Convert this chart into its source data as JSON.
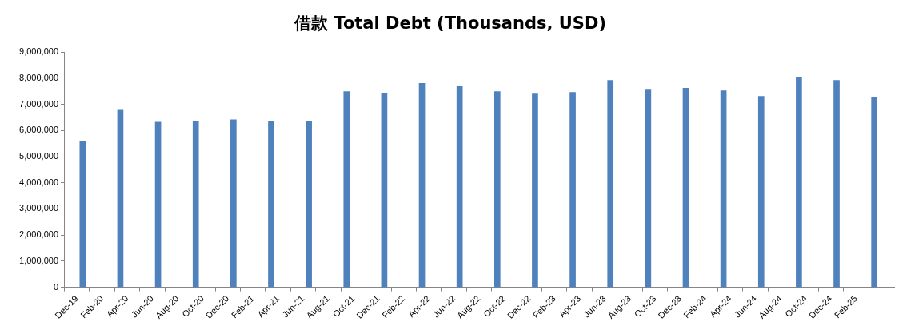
{
  "chart_data": {
    "type": "bar",
    "title": "借款 Total Debt (Thousands, USD)",
    "x": [
      "2019-12-15",
      "2020-03-15",
      "2020-06-15",
      "2020-09-15",
      "2020-12-15",
      "2021-03-15",
      "2021-06-15",
      "2021-09-15",
      "2021-12-15",
      "2022-03-15",
      "2022-06-15",
      "2022-09-15",
      "2022-12-15",
      "2023-03-15",
      "2023-06-15",
      "2023-09-15",
      "2023-12-15",
      "2024-03-15",
      "2024-06-15",
      "2024-09-15",
      "2024-12-15",
      "2025-03-15"
    ],
    "values": [
      5580000,
      6780000,
      6320000,
      6350000,
      6410000,
      6350000,
      6350000,
      7490000,
      7430000,
      7800000,
      7680000,
      7490000,
      7400000,
      7460000,
      7920000,
      7550000,
      7620000,
      7520000,
      7310000,
      8050000,
      7920000,
      7280000
    ],
    "color": "#4f81bd",
    "xlim": [
      "2019-12",
      "2025-04"
    ],
    "xticks": [
      {
        "value": "2019-12",
        "label": "Dec-19"
      },
      {
        "value": "2020-02",
        "label": "Feb-20"
      },
      {
        "value": "2020-04",
        "label": "Apr-20"
      },
      {
        "value": "2020-06",
        "label": "Jun-20"
      },
      {
        "value": "2020-08",
        "label": "Aug-20"
      },
      {
        "value": "2020-10",
        "label": "Oct-20"
      },
      {
        "value": "2020-12",
        "label": "Dec-20"
      },
      {
        "value": "2021-02",
        "label": "Feb-21"
      },
      {
        "value": "2021-04",
        "label": "Apr-21"
      },
      {
        "value": "2021-06",
        "label": "Jun-21"
      },
      {
        "value": "2021-08",
        "label": "Aug-21"
      },
      {
        "value": "2021-10",
        "label": "Oct-21"
      },
      {
        "value": "2021-12",
        "label": "Dec-21"
      },
      {
        "value": "2022-02",
        "label": "Feb-22"
      },
      {
        "value": "2022-04",
        "label": "Apr-22"
      },
      {
        "value": "2022-06",
        "label": "Jun-22"
      },
      {
        "value": "2022-08",
        "label": "Aug-22"
      },
      {
        "value": "2022-10",
        "label": "Oct-22"
      },
      {
        "value": "2022-12",
        "label": "Dec-22"
      },
      {
        "value": "2023-02",
        "label": "Feb-23"
      },
      {
        "value": "2023-04",
        "label": "Apr-23"
      },
      {
        "value": "2023-06",
        "label": "Jun-23"
      },
      {
        "value": "2023-08",
        "label": "Aug-23"
      },
      {
        "value": "2023-10",
        "label": "Oct-23"
      },
      {
        "value": "2023-12",
        "label": "Dec-23"
      },
      {
        "value": "2024-02",
        "label": "Feb-24"
      },
      {
        "value": "2024-04",
        "label": "Apr-24"
      },
      {
        "value": "2024-06",
        "label": "Jun-24"
      },
      {
        "value": "2024-08",
        "label": "Aug-24"
      },
      {
        "value": "2024-10",
        "label": "Oct-24"
      },
      {
        "value": "2024-12",
        "label": "Dec-24"
      },
      {
        "value": "2025-02",
        "label": "Feb-25"
      }
    ],
    "ylim": [
      0,
      9000000
    ],
    "yticks": [
      {
        "value": 0,
        "label": "0"
      },
      {
        "value": 1000000,
        "label": "1,000,000"
      },
      {
        "value": 2000000,
        "label": "2,000,000"
      },
      {
        "value": 3000000,
        "label": "3,000,000"
      },
      {
        "value": 4000000,
        "label": "4,000,000"
      },
      {
        "value": 5000000,
        "label": "5,000,000"
      },
      {
        "value": 6000000,
        "label": "6,000,000"
      },
      {
        "value": 7000000,
        "label": "7,000,000"
      },
      {
        "value": 8000000,
        "label": "8,000,000"
      },
      {
        "value": 9000000,
        "label": "9,000,000"
      }
    ],
    "grid": false,
    "legend": false
  }
}
